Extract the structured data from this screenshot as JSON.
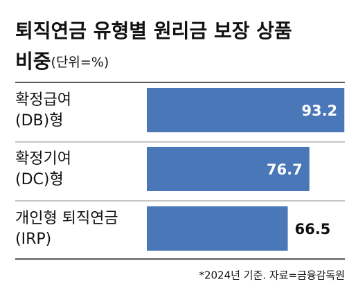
{
  "chart_data": {
    "type": "bar",
    "orientation": "horizontal",
    "title": "퇴직연금 유형별 원리금 보장 상품",
    "title_line2": "비중",
    "unit": "(단위=%)",
    "categories": [
      "확정급여\n(DB)형",
      "확정기여\n(DC)형",
      "개인형 퇴직연금\n(IRP)"
    ],
    "values": [
      93.2,
      76.7,
      66.5
    ],
    "color": "#4a77b7",
    "note": "*2024년 기준. 자료=금융감독원"
  }
}
